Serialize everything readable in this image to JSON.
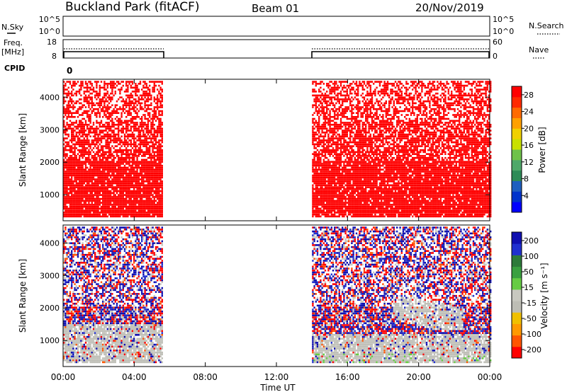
{
  "header": {
    "station": "Buckland Park (fitACF)",
    "beam": "Beam 01",
    "date": "20/Nov/2019"
  },
  "top_panels": {
    "nsky": {
      "label": "N.Sky",
      "ticks": [
        "10^5",
        "10^0"
      ]
    },
    "nsearch": {
      "label": "N.Search",
      "ticks": [
        "10^5",
        "10^0"
      ]
    },
    "freq": {
      "label_line1": "Freq.",
      "label_line2": "[MHz]",
      "ticks": [
        "18",
        "8"
      ]
    },
    "nave": {
      "label": "Nave",
      "ticks": [
        "60",
        "0"
      ]
    },
    "cpid": {
      "label": "CPID",
      "value": "0"
    }
  },
  "colors": {
    "power": [
      "#0000ff",
      "#0033cc",
      "#1f5fbf",
      "#2e8b57",
      "#4fa86a",
      "#6fc24a",
      "#c8e000",
      "#f0d000",
      "#ffa000",
      "#ff6a00",
      "#ff2a00",
      "#ff0000"
    ],
    "velocity": [
      "#1010b0",
      "#2030d0",
      "#2d7a3a",
      "#3aa040",
      "#66cc44",
      "#c8c8c0",
      "#bdbdb5",
      "#f0c000",
      "#ff9900",
      "#ff5500",
      "#ff0000"
    ],
    "ground_scatter": "#c0c0b8"
  },
  "chart_data": [
    {
      "type": "heatmap",
      "title": "",
      "xlabel": "",
      "ylabel": "Slant Range [km]",
      "xlim_hours": [
        0,
        24
      ],
      "ylim": [
        200,
        4550
      ],
      "x_ticks": [
        "00:00",
        "04:00",
        "08:00",
        "12:00",
        "16:00",
        "20:00",
        "00:00"
      ],
      "y_ticks": [
        "1000",
        "2000",
        "3000",
        "4000"
      ],
      "data_segments_hours": [
        [
          0.0,
          5.6
        ],
        [
          14.0,
          24.0
        ]
      ],
      "colorbar": {
        "label": "Power [dB]",
        "ticks": [
          "4",
          "8",
          "12",
          "16",
          "20",
          "24",
          "28"
        ],
        "range": [
          0,
          30
        ]
      }
    },
    {
      "type": "heatmap",
      "title": "",
      "xlabel": "Time UT",
      "ylabel": "Slant Range [km]",
      "xlim_hours": [
        0,
        24
      ],
      "ylim": [
        200,
        4550
      ],
      "x_ticks": [
        "00:00",
        "04:00",
        "08:00",
        "12:00",
        "16:00",
        "20:00",
        "00:00"
      ],
      "y_ticks": [
        "1000",
        "2000",
        "3000",
        "4000"
      ],
      "data_segments_hours": [
        [
          0.0,
          5.6
        ],
        [
          14.0,
          24.0
        ]
      ],
      "colorbar": {
        "label": "Velocity [m s⁻¹]",
        "ticks": [
          "200",
          "100",
          "50",
          "15",
          "-15",
          "-50",
          "-100",
          "-200"
        ],
        "range": [
          -250,
          250
        ]
      }
    }
  ]
}
